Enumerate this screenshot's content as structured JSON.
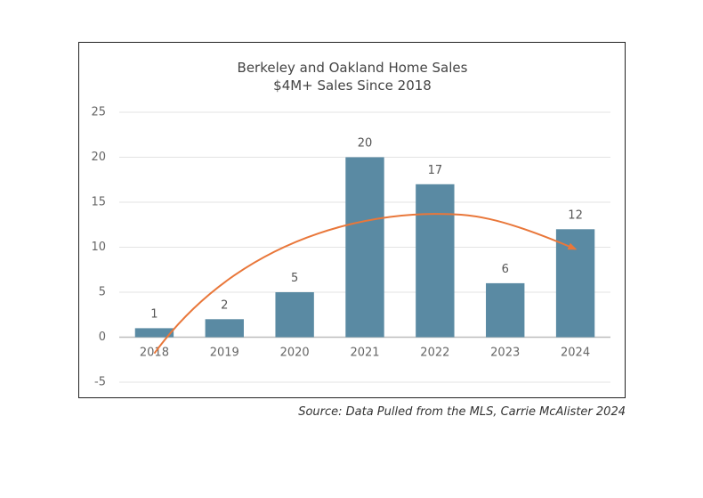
{
  "chart_data": {
    "type": "bar",
    "title": "Berkeley and Oakland Home Sales",
    "subtitle": "$4M+ Sales Since 2018",
    "categories": [
      "2018",
      "2019",
      "2020",
      "2021",
      "2022",
      "2023",
      "2024"
    ],
    "values": [
      1,
      2,
      5,
      20,
      17,
      6,
      12
    ],
    "data_labels": [
      "1",
      "2",
      "5",
      "20",
      "17",
      "6",
      "12"
    ],
    "ylim": [
      -5,
      25
    ],
    "yticks": [
      25,
      20,
      15,
      10,
      5,
      0,
      -5
    ],
    "ytick_labels": [
      "25",
      "20",
      "15",
      "10",
      "5",
      "0",
      "-5"
    ],
    "grid": true,
    "bar_color": "#5a8aa3",
    "trend_arrow": {
      "color": "#e9773a",
      "points": [
        [
          2018,
          -1.8
        ],
        [
          2022,
          13.7
        ],
        [
          2024,
          9.8
        ]
      ]
    }
  },
  "source": "Source: Data Pulled from the MLS, Carrie McAlister 2024"
}
